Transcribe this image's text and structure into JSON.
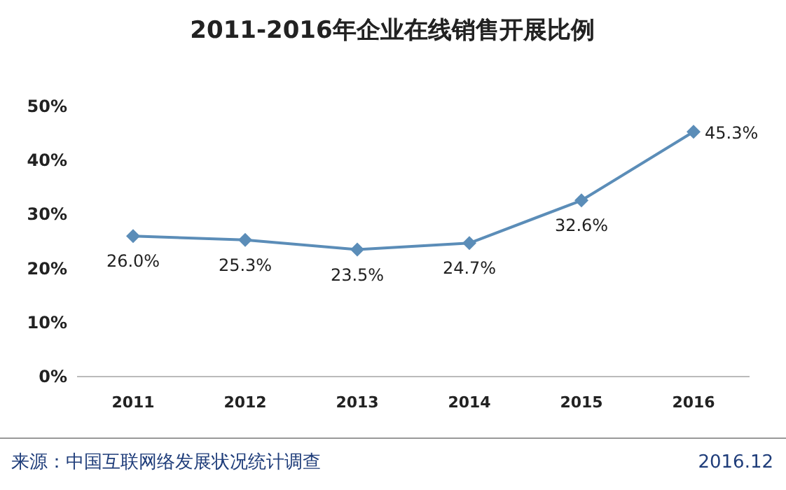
{
  "chart_data": {
    "type": "line",
    "title": "2011-2016年企业在线销售开展比例",
    "categories": [
      "2011",
      "2012",
      "2013",
      "2014",
      "2015",
      "2016"
    ],
    "series": [
      {
        "color": "#5b8db8",
        "values": [
          26.0,
          25.3,
          23.5,
          24.7,
          32.6,
          45.3
        ],
        "value_labels": [
          "26.0%",
          "25.3%",
          "23.5%",
          "24.7%",
          "32.6%",
          "45.3%"
        ]
      }
    ],
    "ylim": [
      0,
      50
    ],
    "yticks": [
      {
        "value": 0,
        "label": "0%"
      },
      {
        "value": 10,
        "label": "10%"
      },
      {
        "value": 20,
        "label": "20%"
      },
      {
        "value": 30,
        "label": "30%"
      },
      {
        "value": 40,
        "label": "40%"
      },
      {
        "value": 50,
        "label": "50%"
      }
    ],
    "grid": false,
    "marker": "diamond",
    "line_style": "solid",
    "annotations": [
      "来源：中国互联网络发展状况统计调查",
      "2016.12"
    ]
  }
}
